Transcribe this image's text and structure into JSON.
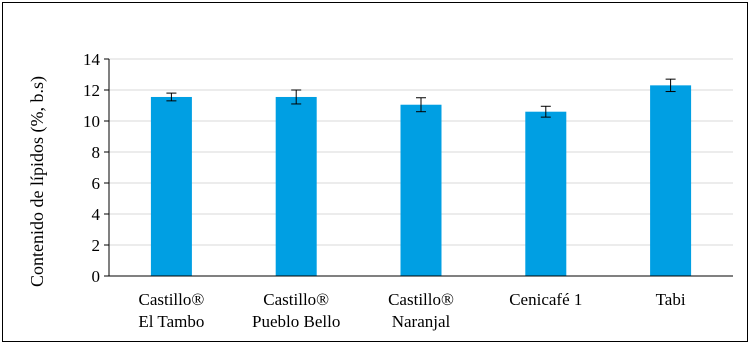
{
  "chart_data": {
    "type": "bar",
    "title": "",
    "xlabel": "",
    "ylabel": "Contenido de lípidos (%, b.s)",
    "ylim": [
      0,
      14
    ],
    "yticks": [
      0,
      2,
      4,
      6,
      8,
      10,
      12,
      14
    ],
    "grid": true,
    "legend": "none",
    "categories": [
      [
        "Castillo®",
        "El Tambo"
      ],
      [
        "Castillo®",
        "Pueblo Bello"
      ],
      [
        "Castillo®",
        "Naranjal"
      ],
      [
        "Cenicafé 1"
      ],
      [
        "Tabi"
      ]
    ],
    "series": [
      {
        "values": [
          11.55,
          11.55,
          11.05,
          10.6,
          12.3
        ],
        "errors": [
          0.25,
          0.45,
          0.45,
          0.35,
          0.4
        ],
        "color": "#009FE3"
      }
    ]
  }
}
